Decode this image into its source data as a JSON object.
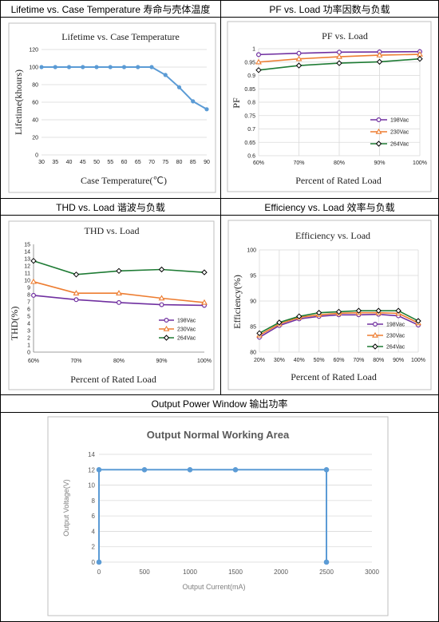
{
  "cells": {
    "lifetime_title": "Lifetime vs. Case Temperature 寿命与壳体温度",
    "pf_title": "PF vs. Load 功率因数与负载",
    "thd_title": "THD vs. Load 谐波与负载",
    "eff_title": "Efficiency vs. Load 效率与负载",
    "opw_title": "Output Power Window 输出功率"
  },
  "colors": {
    "blue": "#5B9BD5",
    "purple": "#7030A0",
    "orange": "#ED7D31",
    "green": "#1E7B34",
    "grid": "#d9d9d9"
  },
  "chart_data": [
    {
      "id": "lifetime",
      "type": "line",
      "title": "Lifetime vs. Case Temperature",
      "xlabel": "Case Temperature(℃)",
      "ylabel": "Lifetime(khours)",
      "x": [
        30,
        35,
        40,
        45,
        50,
        55,
        60,
        65,
        70,
        75,
        80,
        85,
        90
      ],
      "xticks": [
        "30",
        "35",
        "40",
        "45",
        "50",
        "55",
        "60",
        "65",
        "70",
        "75",
        "80",
        "85",
        "90"
      ],
      "yticks": [
        "0",
        "20",
        "40",
        "60",
        "80",
        "100",
        "120"
      ],
      "ylim": [
        0,
        120
      ],
      "grid": true,
      "series": [
        {
          "values": [
            100,
            100,
            100,
            100,
            100,
            100,
            100,
            100,
            100,
            91,
            77,
            61,
            52
          ]
        }
      ]
    },
    {
      "id": "pf",
      "type": "line",
      "title": "PF vs. Load",
      "xlabel": "Percent of Rated Load",
      "ylabel": "PF",
      "categories": [
        "60%",
        "70%",
        "80%",
        "90%",
        "100%"
      ],
      "yticks": [
        "0.6",
        "0.65",
        "0.7",
        "0.75",
        "0.8",
        "0.85",
        "0.9",
        "0.95",
        "1"
      ],
      "ylim": [
        0.6,
        1.0
      ],
      "legend": "right",
      "grid": true,
      "series": [
        {
          "name": "198Vac",
          "values": [
            0.978,
            0.983,
            0.987,
            0.988,
            0.989
          ]
        },
        {
          "name": "230Vac",
          "values": [
            0.95,
            0.962,
            0.97,
            0.976,
            0.979
          ]
        },
        {
          "name": "264Vac",
          "values": [
            0.92,
            0.937,
            0.946,
            0.951,
            0.962
          ]
        }
      ]
    },
    {
      "id": "thd",
      "type": "line",
      "title": "THD vs. Load",
      "xlabel": "Percent of Rated Load",
      "ylabel": "THD(%)",
      "categories": [
        "60%",
        "70%",
        "80%",
        "90%",
        "100%"
      ],
      "yticks": [
        "0",
        "1",
        "2",
        "3",
        "4",
        "5",
        "6",
        "7",
        "8",
        "9",
        "10",
        "11",
        "12",
        "13",
        "14",
        "15"
      ],
      "ylim": [
        0,
        15
      ],
      "legend": "right",
      "grid": false,
      "series": [
        {
          "name": "198Vac",
          "values": [
            7.9,
            7.3,
            6.9,
            6.6,
            6.5
          ]
        },
        {
          "name": "230Vac",
          "values": [
            9.8,
            8.2,
            8.2,
            7.5,
            6.9
          ]
        },
        {
          "name": "264Vac",
          "values": [
            12.7,
            10.8,
            11.3,
            11.5,
            11.1
          ]
        }
      ]
    },
    {
      "id": "efficiency",
      "type": "line",
      "title": "Efficiency vs. Load",
      "xlabel": "Percent of Rated Load",
      "ylabel": "Efficiency(%)",
      "categories": [
        "20%",
        "30%",
        "40%",
        "50%",
        "60%",
        "70%",
        "80%",
        "90%",
        "100%"
      ],
      "yticks": [
        "80",
        "85",
        "90",
        "95",
        "100"
      ],
      "ylim": [
        80,
        100
      ],
      "legend": "bottom-right",
      "grid": true,
      "series": [
        {
          "name": "198Vac",
          "values": [
            82.9,
            85.2,
            86.5,
            87.0,
            87.3,
            87.3,
            87.4,
            87.1,
            85.3
          ]
        },
        {
          "name": "230Vac",
          "values": [
            83.3,
            85.5,
            86.8,
            87.3,
            87.6,
            87.7,
            87.7,
            87.6,
            85.7
          ]
        },
        {
          "name": "264Vac",
          "values": [
            83.7,
            85.8,
            87.0,
            87.7,
            87.9,
            88.1,
            88.1,
            88.1,
            86.1
          ]
        }
      ]
    },
    {
      "id": "output_window",
      "type": "line",
      "title": "Output Normal Working Area",
      "xlabel": "Output Current(mA)",
      "ylabel": "Output Voltage(V)",
      "xticks": [
        "0",
        "500",
        "1000",
        "1500",
        "2000",
        "2500",
        "3000"
      ],
      "yticks": [
        "0",
        "2",
        "4",
        "6",
        "8",
        "10",
        "12",
        "14"
      ],
      "xlim": [
        0,
        3000
      ],
      "ylim": [
        0,
        14
      ],
      "grid": true,
      "series": [
        {
          "x": [
            0,
            0,
            500,
            1000,
            1500,
            2500,
            2500
          ],
          "values": [
            0,
            12,
            12,
            12,
            12,
            12,
            0
          ]
        }
      ]
    }
  ]
}
